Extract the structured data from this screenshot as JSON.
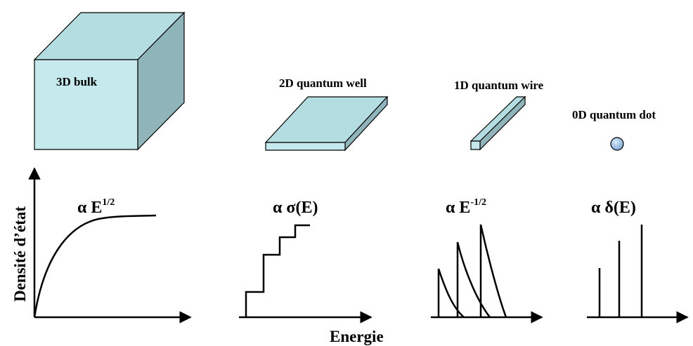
{
  "structures": {
    "bulk": "3D bulk",
    "well": "2D quantum well",
    "wire": "1D quantum wire",
    "dot": "0D quantum dot"
  },
  "dos_labels": {
    "bulk_prefix": "α E",
    "bulk_exp": "1/2",
    "well": "α σ(E)",
    "wire_prefix": "α E",
    "wire_exp": "-1/2",
    "dot": "α δ(E)"
  },
  "axes": {
    "ylabel": "Densité d’état",
    "xlabel": "Energie"
  },
  "colors": {
    "solid_face": "#c5e9ec",
    "solid_top": "#b4dde2",
    "solid_side": "#8fb5bb",
    "dot_fill": "#9cc3e8",
    "ink": "#000000"
  }
}
